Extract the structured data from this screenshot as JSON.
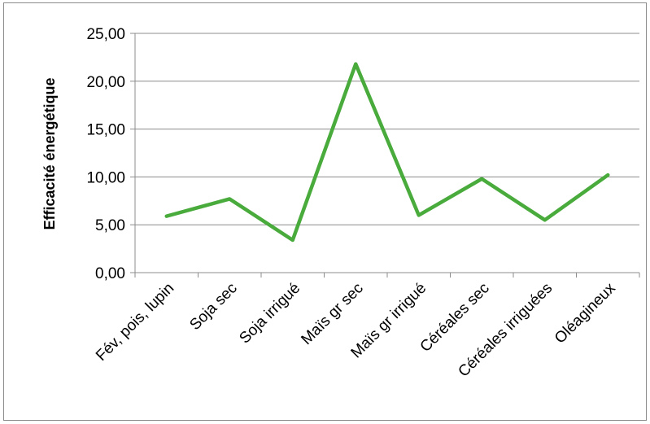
{
  "chart_data": {
    "type": "line",
    "title": "",
    "xlabel": "",
    "ylabel": "Efficacité énergétique",
    "categories": [
      "Fév, pois, lupin",
      "Soja sec",
      "Soja irrigué",
      "Maïs gr sec",
      "Maïs gr irrigué",
      "Céréales sec",
      "Céréales irriguées",
      "Oléagineux"
    ],
    "series": [
      {
        "values": [
          5.9,
          7.7,
          3.4,
          21.8,
          6.0,
          9.8,
          5.5,
          10.2
        ],
        "color": "#4aab3d"
      }
    ],
    "yticks": [
      "0,00",
      "5,00",
      "10,00",
      "15,00",
      "20,00",
      "25,00"
    ],
    "ylim": [
      0,
      25
    ],
    "grid": true,
    "legend": "none"
  }
}
